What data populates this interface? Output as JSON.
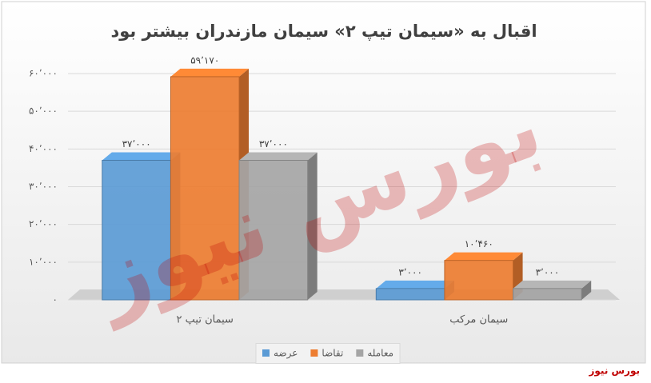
{
  "chart_data": {
    "type": "bar3d",
    "title": "اقبال به «سیمان تیپ ۲» سیمان مازندران بیشتر بود",
    "categories": [
      "سیمان تیپ ۲",
      "سیمان مرکب"
    ],
    "series": [
      {
        "name": "عرضه",
        "color": "#5b9bd5",
        "values": [
          37000,
          3000
        ],
        "value_labels": [
          "۳۷٬۰۰۰",
          "۳٬۰۰۰"
        ]
      },
      {
        "name": "تقاضا",
        "color": "#ed7d31",
        "values": [
          59170,
          10460
        ],
        "value_labels": [
          "۵۹٬۱۷۰",
          "۱۰٬۴۶۰"
        ]
      },
      {
        "name": "معامله",
        "color": "#a5a5a5",
        "values": [
          37000,
          3000
        ],
        "value_labels": [
          "۳۷٬۰۰۰",
          "۳٬۰۰۰"
        ]
      }
    ],
    "ylim": [
      0,
      60000
    ],
    "yticks": [
      {
        "value": 0,
        "label": "۰"
      },
      {
        "value": 10000,
        "label": "۱۰٬۰۰۰"
      },
      {
        "value": 20000,
        "label": "۲۰٬۰۰۰"
      },
      {
        "value": 30000,
        "label": "۳۰٬۰۰۰"
      },
      {
        "value": 40000,
        "label": "۴۰٬۰۰۰"
      },
      {
        "value": 50000,
        "label": "۵۰٬۰۰۰"
      },
      {
        "value": 60000,
        "label": "۶۰٬۰۰۰"
      }
    ],
    "grid": true,
    "legend": "bottom",
    "watermark": "بورس نیوز"
  }
}
